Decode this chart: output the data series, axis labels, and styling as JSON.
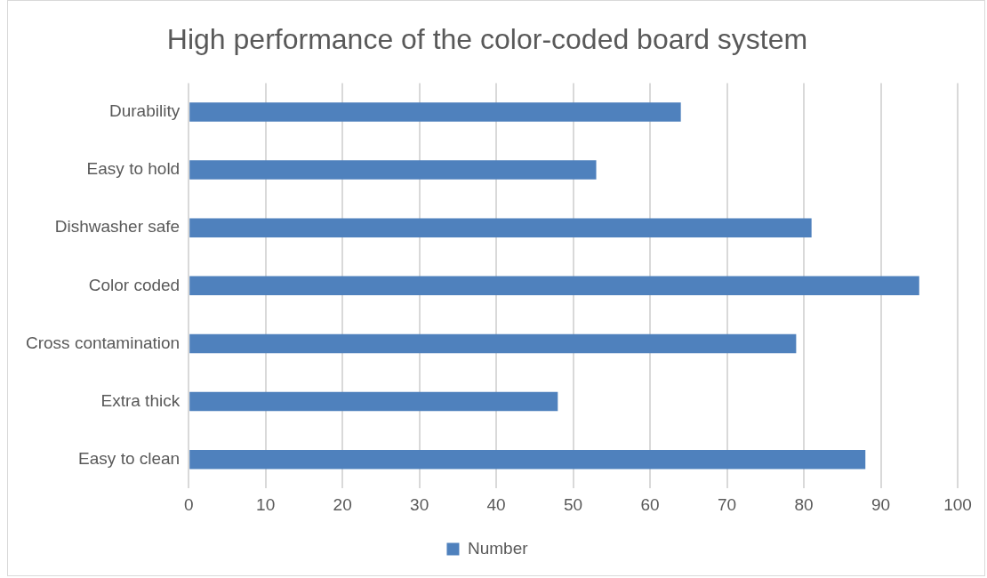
{
  "chart_data": {
    "type": "bar",
    "orientation": "horizontal",
    "title": "High performance of the color-coded board system",
    "categories": [
      "Durability",
      "Easy to hold",
      "Dishwasher safe",
      "Color coded",
      "Cross contamination",
      "Extra thick",
      "Easy to clean"
    ],
    "series": [
      {
        "name": "Number",
        "color": "#4f81bd",
        "values": [
          64,
          53,
          81,
          95,
          79,
          48,
          88
        ]
      }
    ],
    "xlim": [
      0,
      100
    ],
    "xticks": [
      0,
      10,
      20,
      30,
      40,
      50,
      60,
      70,
      80,
      90,
      100
    ],
    "grid": "x",
    "legend": "bottom"
  }
}
